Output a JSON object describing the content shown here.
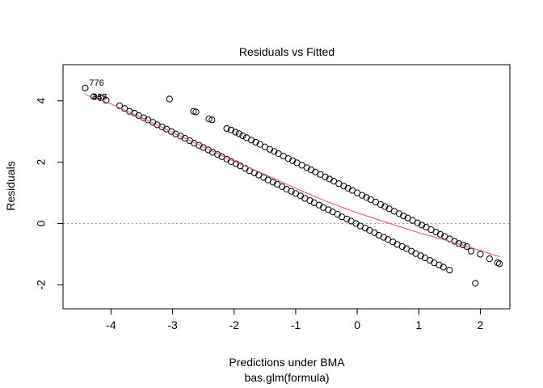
{
  "chart_data": {
    "type": "scatter",
    "title": "Residuals vs Fitted",
    "xlabel": "Predictions under BMA",
    "subtitle": "bas.glm(formula)",
    "ylabel": "Residuals",
    "xlim": [
      -4.78,
      2.48
    ],
    "ylim": [
      -2.78,
      5.18
    ],
    "xticks": [
      -4,
      -3,
      -2,
      -1,
      0,
      1,
      2
    ],
    "yticks": [
      -2,
      0,
      2,
      4
    ],
    "grid": false,
    "reference_line_y": 0,
    "outlier_labels": [
      {
        "text": "776",
        "x": -4.42,
        "y": 4.42
      },
      {
        "text": "335",
        "x": -4.28,
        "y": 4.14
      },
      {
        "text": "447",
        "x": -4.28,
        "y": 4.14
      }
    ],
    "series": [
      {
        "values_note_free": true,
        "points_upper": [
          [
            -4.42,
            4.42
          ],
          [
            -4.28,
            4.14
          ],
          [
            -4.17,
            4.1
          ],
          [
            -4.08,
            4.02
          ],
          [
            -3.05,
            4.06
          ],
          [
            -2.66,
            3.66
          ],
          [
            -2.62,
            3.64
          ],
          [
            -2.41,
            3.41
          ],
          [
            -2.36,
            3.38
          ],
          [
            -2.12,
            3.1
          ],
          [
            -2.05,
            3.05
          ],
          [
            -1.98,
            2.98
          ],
          [
            -1.92,
            2.93
          ],
          [
            -1.86,
            2.86
          ],
          [
            -1.8,
            2.8
          ],
          [
            -1.72,
            2.72
          ],
          [
            -1.65,
            2.65
          ],
          [
            -1.58,
            2.58
          ],
          [
            -1.5,
            2.5
          ],
          [
            -1.42,
            2.42
          ],
          [
            -1.35,
            2.35
          ],
          [
            -1.28,
            2.28
          ],
          [
            -1.2,
            2.2
          ],
          [
            -1.12,
            2.12
          ],
          [
            -1.05,
            2.05
          ],
          [
            -0.98,
            1.98
          ],
          [
            -0.9,
            1.9
          ],
          [
            -0.82,
            1.82
          ],
          [
            -0.75,
            1.75
          ],
          [
            -0.68,
            1.68
          ],
          [
            -0.6,
            1.6
          ],
          [
            -0.52,
            1.52
          ],
          [
            -0.45,
            1.45
          ],
          [
            -0.38,
            1.38
          ],
          [
            -0.3,
            1.3
          ],
          [
            -0.22,
            1.22
          ],
          [
            -0.15,
            1.15
          ],
          [
            -0.08,
            1.08
          ],
          [
            0.0,
            1.0
          ],
          [
            0.08,
            0.92
          ],
          [
            0.15,
            0.85
          ],
          [
            0.22,
            0.78
          ],
          [
            0.3,
            0.7
          ],
          [
            0.38,
            0.62
          ],
          [
            0.45,
            0.55
          ],
          [
            0.52,
            0.48
          ],
          [
            0.6,
            0.4
          ],
          [
            0.68,
            0.32
          ],
          [
            0.75,
            0.25
          ],
          [
            0.82,
            0.18
          ],
          [
            0.9,
            0.1
          ],
          [
            0.98,
            0.02
          ],
          [
            1.05,
            -0.05
          ],
          [
            1.12,
            -0.12
          ],
          [
            1.2,
            -0.2
          ],
          [
            1.28,
            -0.28
          ],
          [
            1.35,
            -0.35
          ],
          [
            1.42,
            -0.42
          ],
          [
            1.5,
            -0.5
          ],
          [
            1.58,
            -0.58
          ],
          [
            1.65,
            -0.65
          ],
          [
            1.72,
            -0.7
          ],
          [
            1.78,
            -0.75
          ],
          [
            1.85,
            -0.9
          ],
          [
            2.0,
            -1.0
          ],
          [
            2.15,
            -1.15
          ],
          [
            2.28,
            -1.28
          ],
          [
            2.31,
            -1.31
          ]
        ],
        "points_lower": [
          [
            -3.86,
            3.84
          ],
          [
            -3.78,
            3.75
          ],
          [
            -3.7,
            3.66
          ],
          [
            -3.62,
            3.6
          ],
          [
            -3.55,
            3.52
          ],
          [
            -3.47,
            3.45
          ],
          [
            -3.4,
            3.38
          ],
          [
            -3.32,
            3.3
          ],
          [
            -3.25,
            3.22
          ],
          [
            -3.17,
            3.15
          ],
          [
            -3.1,
            3.08
          ],
          [
            -3.02,
            3.0
          ],
          [
            -2.95,
            2.92
          ],
          [
            -2.87,
            2.85
          ],
          [
            -2.8,
            2.78
          ],
          [
            -2.72,
            2.7
          ],
          [
            -2.65,
            2.62
          ],
          [
            -2.57,
            2.55
          ],
          [
            -2.5,
            2.48
          ],
          [
            -2.42,
            2.4
          ],
          [
            -2.35,
            2.32
          ],
          [
            -2.27,
            2.25
          ],
          [
            -2.2,
            2.18
          ],
          [
            -2.12,
            2.1
          ],
          [
            -2.05,
            2.02
          ],
          [
            -1.97,
            1.95
          ],
          [
            -1.9,
            1.88
          ],
          [
            -1.82,
            1.8
          ],
          [
            -1.75,
            1.72
          ],
          [
            -1.67,
            1.65
          ],
          [
            -1.6,
            1.58
          ],
          [
            -1.52,
            1.5
          ],
          [
            -1.45,
            1.42
          ],
          [
            -1.37,
            1.35
          ],
          [
            -1.3,
            1.28
          ],
          [
            -1.22,
            1.2
          ],
          [
            -1.15,
            1.12
          ],
          [
            -1.07,
            1.05
          ],
          [
            -1.0,
            0.98
          ],
          [
            -0.92,
            0.9
          ],
          [
            -0.85,
            0.82
          ],
          [
            -0.77,
            0.75
          ],
          [
            -0.7,
            0.68
          ],
          [
            -0.62,
            0.6
          ],
          [
            -0.55,
            0.52
          ],
          [
            -0.47,
            0.45
          ],
          [
            -0.4,
            0.38
          ],
          [
            -0.32,
            0.3
          ],
          [
            -0.25,
            0.22
          ],
          [
            -0.17,
            0.15
          ],
          [
            -0.1,
            0.08
          ],
          [
            -0.02,
            0.0
          ],
          [
            0.05,
            -0.08
          ],
          [
            0.13,
            -0.15
          ],
          [
            0.2,
            -0.22
          ],
          [
            0.28,
            -0.3
          ],
          [
            0.35,
            -0.38
          ],
          [
            0.43,
            -0.45
          ],
          [
            0.5,
            -0.52
          ],
          [
            0.58,
            -0.6
          ],
          [
            0.65,
            -0.68
          ],
          [
            0.73,
            -0.75
          ],
          [
            0.8,
            -0.82
          ],
          [
            0.88,
            -0.9
          ],
          [
            0.95,
            -0.98
          ],
          [
            1.03,
            -1.05
          ],
          [
            1.1,
            -1.12
          ],
          [
            1.18,
            -1.2
          ],
          [
            1.25,
            -1.28
          ],
          [
            1.33,
            -1.35
          ],
          [
            1.4,
            -1.42
          ],
          [
            1.5,
            -1.52
          ],
          [
            1.92,
            -1.95
          ]
        ],
        "smooth": [
          [
            -4.42,
            4.2
          ],
          [
            -4.0,
            3.9
          ],
          [
            -3.5,
            3.45
          ],
          [
            -3.0,
            2.97
          ],
          [
            -2.5,
            2.5
          ],
          [
            -2.0,
            2.03
          ],
          [
            -1.5,
            1.6
          ],
          [
            -1.0,
            1.15
          ],
          [
            -0.5,
            0.72
          ],
          [
            0.0,
            0.35
          ],
          [
            0.5,
            0.02
          ],
          [
            1.0,
            -0.3
          ],
          [
            1.5,
            -0.58
          ],
          [
            2.0,
            -0.88
          ],
          [
            2.31,
            -1.08
          ]
        ]
      }
    ]
  }
}
